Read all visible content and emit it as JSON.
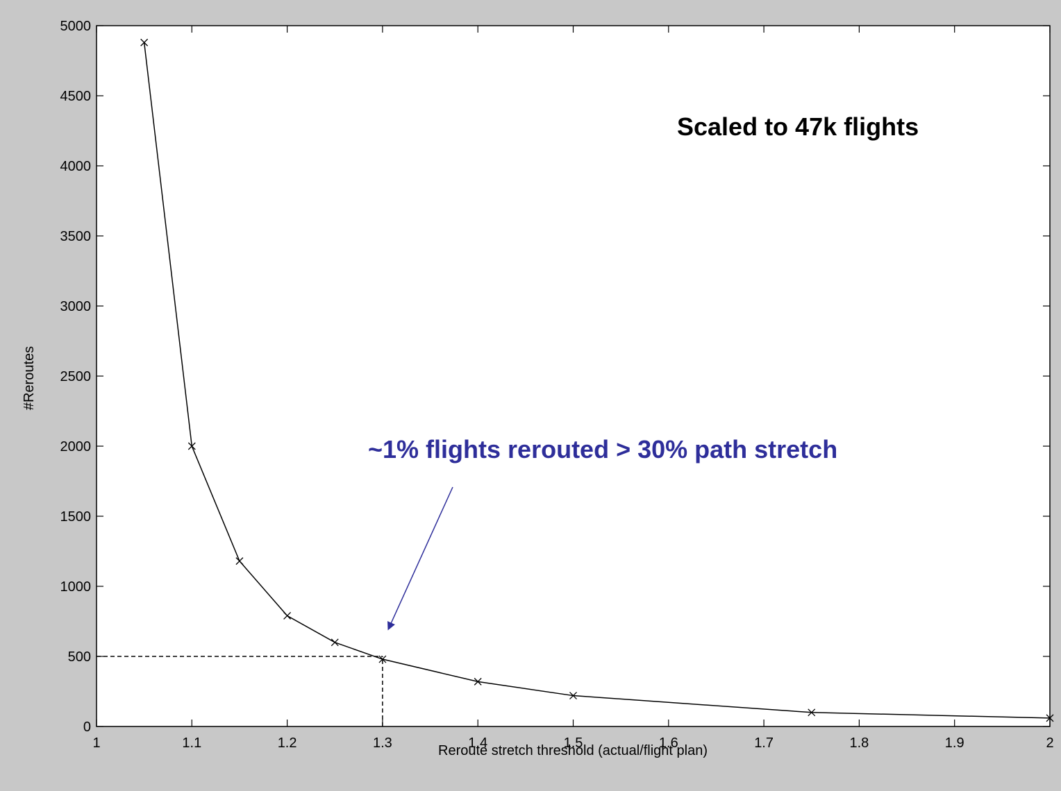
{
  "chart_data": {
    "type": "line",
    "title": "",
    "xlabel": "Reroute stretch threshold (actual/flight plan)",
    "ylabel": "#Reroutes",
    "xlim": [
      1,
      2
    ],
    "ylim": [
      0,
      5000
    ],
    "xticks": [
      "1",
      "1.1",
      "1.2",
      "1.3",
      "1.4",
      "1.5",
      "1.6",
      "1.7",
      "1.8",
      "1.9",
      "2"
    ],
    "yticks": [
      "0",
      "500",
      "1000",
      "1500",
      "2000",
      "2500",
      "3000",
      "3500",
      "4000",
      "4500",
      "5000"
    ],
    "grid": false,
    "marker": "x",
    "series": [
      {
        "x": [
          1.05,
          1.1,
          1.15,
          1.2,
          1.25,
          1.3,
          1.4,
          1.5,
          1.75,
          2.0
        ],
        "y": [
          4880,
          2000,
          1180,
          790,
          600,
          480,
          320,
          220,
          100,
          60
        ]
      }
    ],
    "reference_lines": [
      {
        "style": "dashed",
        "from": [
          1.0,
          500
        ],
        "to": [
          1.3,
          500
        ]
      },
      {
        "style": "dashed",
        "from": [
          1.3,
          0
        ],
        "to": [
          1.3,
          500
        ]
      }
    ],
    "annotations": [
      {
        "text": "Scaled to 47k flights",
        "color": "#000000"
      },
      {
        "text": "~1% flights rerouted > 30% path stretch",
        "color": "#2e2e9a",
        "arrow_to": [
          1.3,
          500
        ]
      }
    ]
  }
}
